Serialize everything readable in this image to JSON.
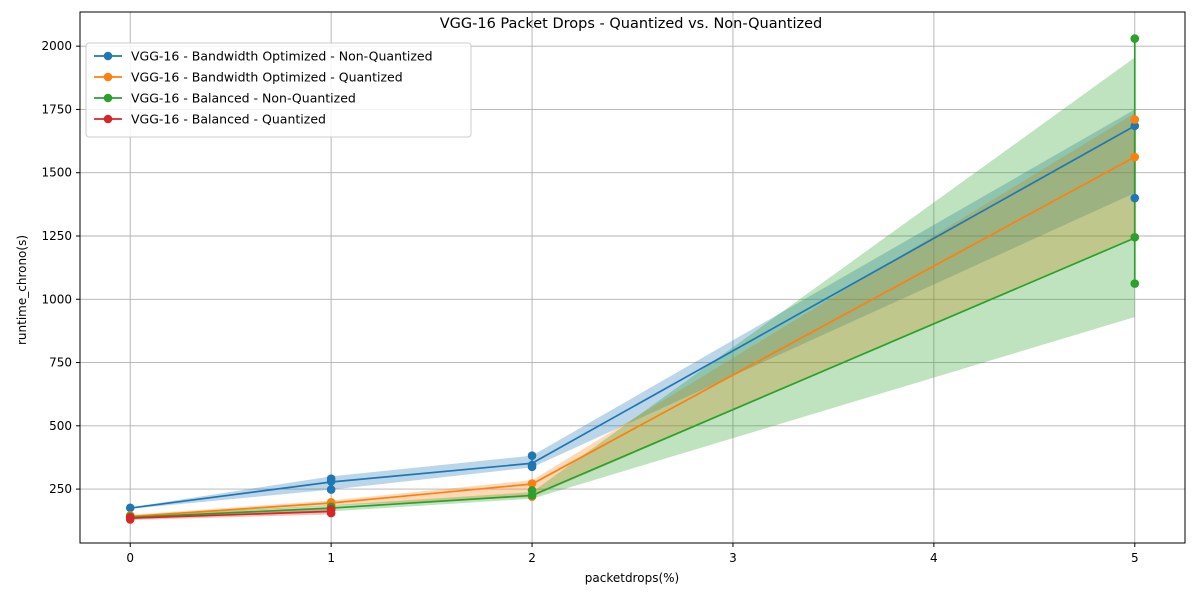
{
  "chart_data": {
    "type": "line",
    "title": "VGG-16 Packet Drops - Quantized vs. Non-Quantized",
    "xlabel": "packetdrops(%)",
    "ylabel": "runtime_chrono(s)",
    "xlim": [
      -0.25,
      5.25
    ],
    "ylim": [
      37,
      2135
    ],
    "xticks": [
      0,
      1,
      2,
      3,
      4,
      5
    ],
    "yticks": [
      250,
      500,
      750,
      1000,
      1250,
      1500,
      1750,
      2000
    ],
    "grid": true,
    "legend_position": "top-left",
    "series": [
      {
        "name": "VGG-16 - Bandwidth Optimized - Non-Quantized",
        "color": "#1f77b4",
        "x": [
          0,
          1,
          2,
          5
        ],
        "y": [
          175,
          278,
          352,
          1685
        ],
        "band_low": [
          172,
          248,
          336,
          1420
        ],
        "band_high": [
          178,
          300,
          382,
          1750
        ],
        "points": [
          [
            0,
            176
          ],
          [
            1,
            248
          ],
          [
            1,
            280
          ],
          [
            1,
            291
          ],
          [
            2,
            338
          ],
          [
            2,
            345
          ],
          [
            2,
            382
          ],
          [
            5,
            1400
          ],
          [
            5,
            1685
          ]
        ]
      },
      {
        "name": "VGG-16 - Bandwidth Optimized - Quantized",
        "color": "#ff7f0e",
        "x": [
          0,
          1,
          2,
          5
        ],
        "y": [
          142,
          195,
          270,
          1562
        ],
        "band_low": [
          136,
          185,
          218,
          1245
        ],
        "band_high": [
          148,
          205,
          285,
          1735
        ],
        "points": [
          [
            0,
            140
          ],
          [
            0,
            146
          ],
          [
            1,
            190
          ],
          [
            1,
            198
          ],
          [
            2,
            220
          ],
          [
            2,
            272
          ],
          [
            5,
            1245
          ],
          [
            5,
            1562
          ],
          [
            5,
            1710
          ]
        ]
      },
      {
        "name": "VGG-16 - Balanced - Non-Quantized",
        "color": "#2ca02c",
        "x": [
          0,
          1,
          2,
          5
        ],
        "y": [
          138,
          175,
          225,
          1242
        ],
        "band_low": [
          132,
          162,
          212,
          930
        ],
        "band_high": [
          144,
          186,
          238,
          1955
        ],
        "points": [
          [
            0,
            138
          ],
          [
            0,
            142
          ],
          [
            1,
            170
          ],
          [
            1,
            180
          ],
          [
            2,
            225
          ],
          [
            2,
            245
          ],
          [
            5,
            1062
          ],
          [
            5,
            1245
          ],
          [
            5,
            2030
          ]
        ]
      },
      {
        "name": "VGG-16 - Balanced - Quantized",
        "color": "#d62728",
        "x": [
          0,
          1
        ],
        "y": [
          135,
          162
        ],
        "band_low": [
          128,
          150
        ],
        "band_high": [
          142,
          174
        ],
        "points": [
          [
            0,
            130
          ],
          [
            0,
            138
          ],
          [
            1,
            155
          ],
          [
            1,
            170
          ]
        ]
      }
    ]
  }
}
